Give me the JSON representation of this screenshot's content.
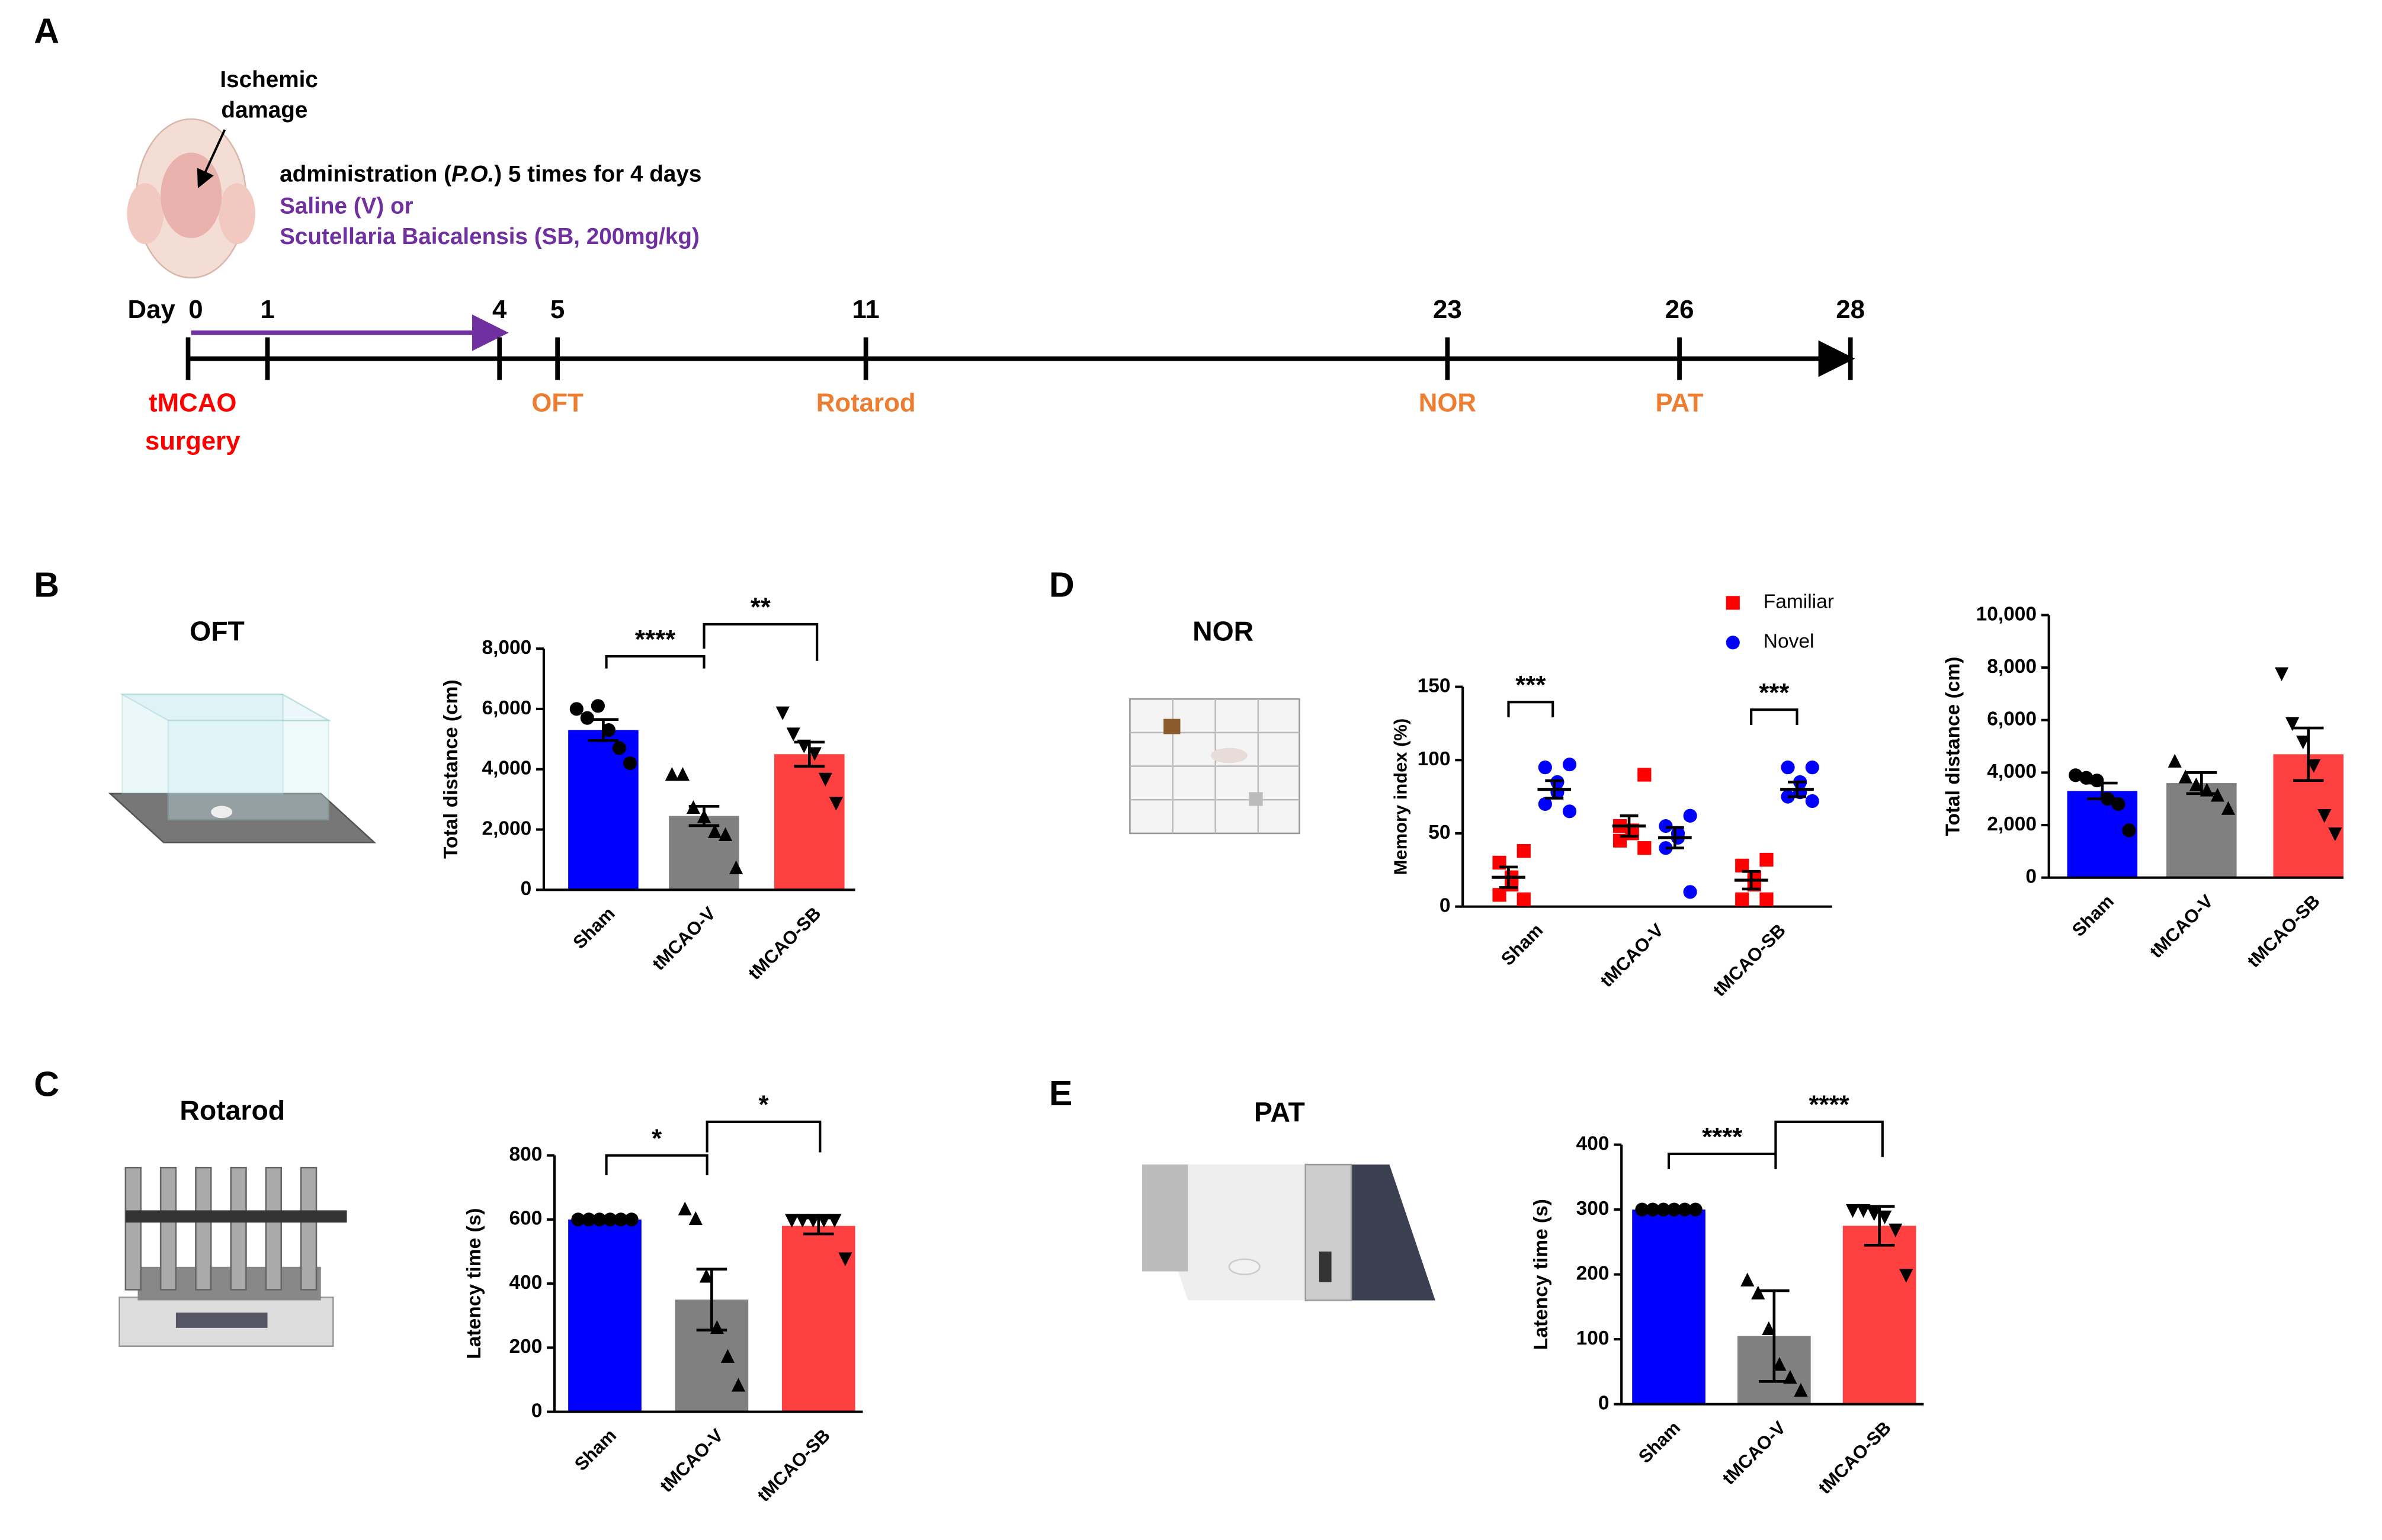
{
  "panels": [
    "A",
    "B",
    "C",
    "D",
    "E"
  ],
  "illustrations": [
    "OFT",
    "Rotarod",
    "NOR",
    "PAT"
  ],
  "timeline": {
    "damage": [
      "Ischemic",
      "damage"
    ],
    "admin": [
      "administration (",
      "P.O.",
      ") 5 times for 4 days"
    ],
    "treatment": [
      "Saline (V) or",
      "Scutellaria  Baicalensis (SB, 200mg/kg)"
    ],
    "day_label": "Day",
    "days": [
      0,
      1,
      4,
      5,
      11,
      23,
      26,
      28
    ],
    "events": [
      {
        "day": 0,
        "label": [
          "tMCAO",
          "surgery"
        ]
      },
      {
        "day": 5,
        "label": [
          "OFT"
        ]
      },
      {
        "day": 11,
        "label": [
          "Rotarod"
        ]
      },
      {
        "day": 23,
        "label": [
          "NOR"
        ]
      },
      {
        "day": 26,
        "label": [
          "PAT"
        ]
      }
    ]
  },
  "chart_data": [
    {
      "type": "bar",
      "ylabel": "Total distance (cm)",
      "categories": [
        "Sham",
        "tMCAO-V",
        "tMCAO-SB"
      ],
      "colors": [
        "#0000ff",
        "#808080",
        "#ff4040"
      ],
      "markers": [
        "circle",
        "triangle",
        "triangle-down"
      ],
      "values": [
        5300,
        2450,
        4500
      ],
      "errors": [
        350,
        320,
        400
      ],
      "points": [
        [
          6000,
          5700,
          6100,
          5300,
          4700,
          4200
        ],
        [
          3800,
          3800,
          2700,
          2400,
          1900,
          1800,
          700
        ],
        [
          5900,
          5200,
          4800,
          4550,
          3700,
          2900
        ]
      ],
      "ylim": [
        0,
        8000
      ],
      "yticks": [
        0,
        {
          "value": 2000,
          "label": "2,000"
        },
        {
          "value": 4000,
          "label": "4,000"
        },
        {
          "value": 6000,
          "label": "6,000"
        },
        {
          "value": 8000,
          "label": "8,000"
        }
      ],
      "significance": [
        "****",
        "**"
      ]
    },
    {
      "type": "bar",
      "ylabel": "Latency time (s)",
      "categories": [
        "Sham",
        "tMCAO-V",
        "tMCAO-SB"
      ],
      "colors": [
        "#0000ff",
        "#808080",
        "#ff4040"
      ],
      "markers": [
        "circle",
        "triangle",
        "triangle-down"
      ],
      "values": [
        600,
        350,
        580
      ],
      "errors": [
        0,
        95,
        25
      ],
      "points": [
        [
          600,
          600,
          600,
          600,
          600,
          600
        ],
        [
          630,
          600,
          420,
          260,
          170,
          80
        ],
        [
          600,
          600,
          600,
          600,
          600,
          480
        ]
      ],
      "ylim": [
        0,
        800
      ],
      "yticks": [
        0,
        200,
        400,
        600,
        800
      ],
      "significance": [
        "*",
        "*"
      ]
    },
    {
      "type": "dot",
      "ylabel": "Memory index (%)",
      "categories": [
        "Sham",
        "tMCAO-V",
        "tMCAO-SB"
      ],
      "series": [
        {
          "name": "Familiar",
          "color": "#ff0000",
          "marker": "square",
          "values": [
            20,
            55,
            18
          ],
          "errors": [
            7,
            7,
            6
          ],
          "points": [
            [
              38,
              30,
              20,
              15,
              8,
              5
            ],
            [
              90,
              55,
              52,
              50,
              45,
              40
            ],
            [
              32,
              28,
              20,
              15,
              5,
              5
            ]
          ]
        },
        {
          "name": "Novel",
          "color": "#0000ff",
          "marker": "circle",
          "values": [
            80,
            47,
            80
          ],
          "errors": [
            6,
            7,
            5
          ],
          "points": [
            [
              97,
              95,
              85,
              78,
              70,
              65
            ],
            [
              62,
              55,
              50,
              47,
              40,
              10
            ],
            [
              95,
              95,
              85,
              78,
              75,
              72
            ]
          ]
        }
      ],
      "ylim": [
        0,
        150
      ],
      "yticks": [
        0,
        50,
        100,
        150
      ],
      "significance": [
        "***",
        "***"
      ]
    },
    {
      "type": "bar",
      "ylabel": "Total distance (cm)",
      "categories": [
        "Sham",
        "tMCAO-V",
        "tMCAO-SB"
      ],
      "colors": [
        "#0000ff",
        "#808080",
        "#ff4040"
      ],
      "markers": [
        "circle",
        "triangle",
        "triangle-down"
      ],
      "values": [
        3300,
        3600,
        4700
      ],
      "errors": [
        300,
        400,
        1000
      ],
      "points": [
        [
          3900,
          3800,
          3700,
          3000,
          2800,
          1800
        ],
        [
          4400,
          3800,
          3500,
          3300,
          3100,
          2600
        ],
        [
          7800,
          5900,
          5200,
          4300,
          2400,
          1700
        ]
      ],
      "ylim": [
        0,
        10000
      ],
      "yticks": [
        0,
        {
          "value": 2000,
          "label": "2,000"
        },
        {
          "value": 4000,
          "label": "4,000"
        },
        {
          "value": 6000,
          "label": "6,000"
        },
        {
          "value": 8000,
          "label": "8,000"
        },
        {
          "value": 10000,
          "label": "10,000"
        }
      ]
    },
    {
      "type": "bar",
      "ylabel": "Latency time (s)",
      "categories": [
        "Sham",
        "tMCAO-V",
        "tMCAO-SB"
      ],
      "colors": [
        "#0000ff",
        "#808080",
        "#ff4040"
      ],
      "markers": [
        "circle",
        "triangle",
        "triangle-down"
      ],
      "values": [
        300,
        105,
        275
      ],
      "errors": [
        0,
        70,
        30
      ],
      "points": [
        [
          300,
          300,
          300,
          300,
          300,
          300
        ],
        [
          190,
          170,
          115,
          60,
          40,
          20
        ],
        [
          300,
          300,
          295,
          290,
          270,
          200
        ]
      ],
      "ylim": [
        0,
        400
      ],
      "yticks": [
        0,
        100,
        200,
        300,
        400
      ],
      "significance": [
        "****",
        "****"
      ]
    }
  ]
}
